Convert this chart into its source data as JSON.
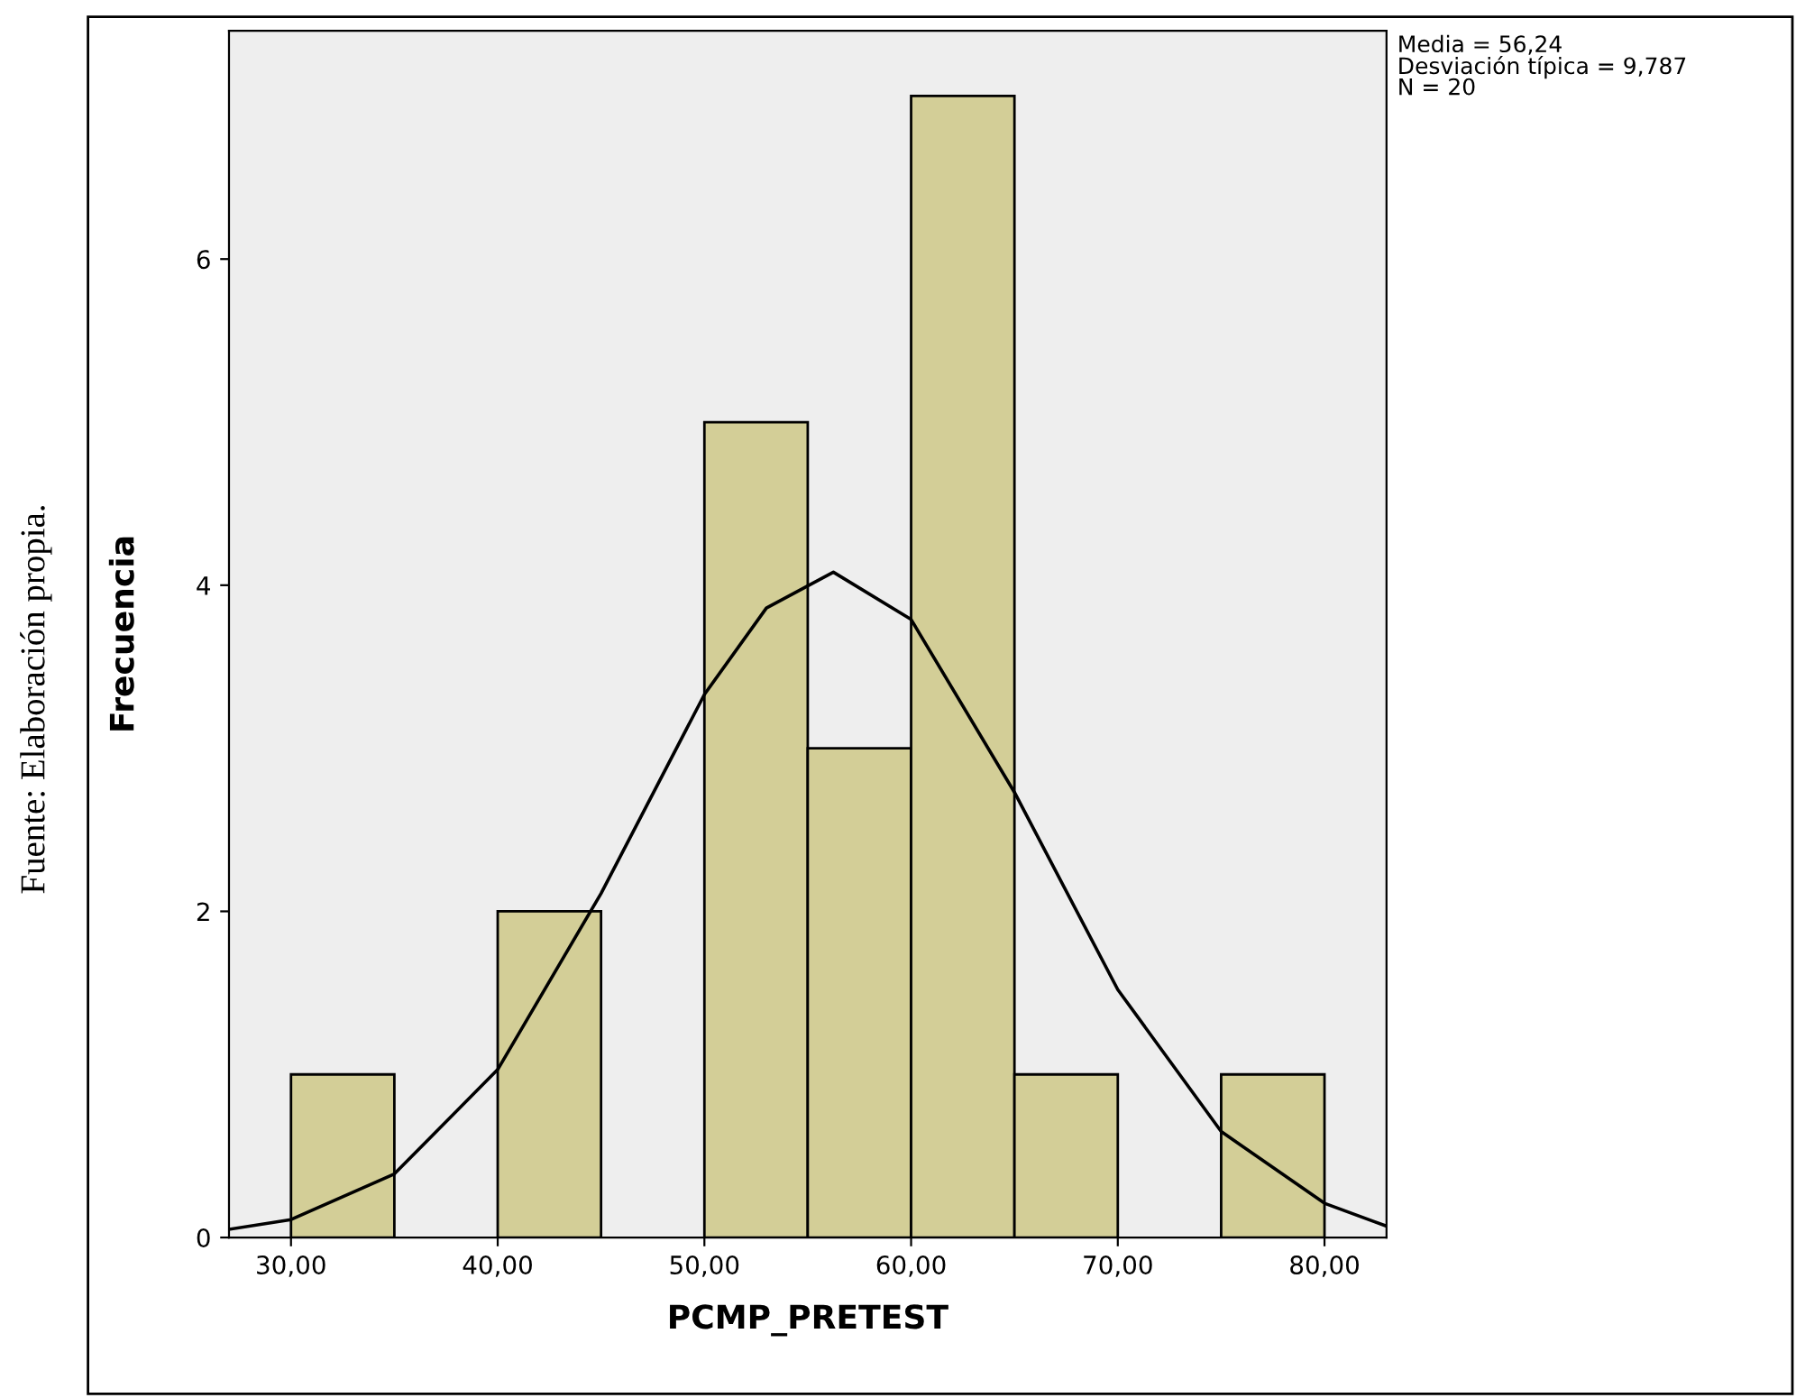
{
  "chart_data": {
    "type": "histogram",
    "xlabel": "PCMP_PRETEST",
    "ylabel": "Frecuencia",
    "bins": [
      30,
      35,
      40,
      45,
      50,
      55,
      60,
      65,
      70,
      75,
      80
    ],
    "values": [
      1,
      0,
      2,
      0,
      5,
      3,
      7,
      1,
      0,
      1
    ],
    "color": "#d3ce97",
    "series": [
      {
        "type": "line",
        "color": "#000000",
        "x": [
          27,
          30,
          35,
          40,
          45,
          50,
          53,
          56.24,
          60,
          65,
          70,
          75,
          80,
          83
        ],
        "values": [
          0.05,
          0.11,
          0.39,
          1.03,
          2.11,
          3.33,
          3.86,
          4.08,
          3.79,
          2.73,
          1.52,
          0.65,
          0.21,
          0.07
        ]
      }
    ],
    "xlim": [
      27,
      83
    ],
    "ylim": [
      0,
      7.4
    ],
    "xticks": [
      {
        "value": 30,
        "label": "30,00"
      },
      {
        "value": 40,
        "label": "40,00"
      },
      {
        "value": 50,
        "label": "50,00"
      },
      {
        "value": 60,
        "label": "60,00"
      },
      {
        "value": 70,
        "label": "70,00"
      },
      {
        "value": 80,
        "label": "80,00"
      }
    ],
    "yticks": [
      0,
      2,
      4,
      6
    ],
    "grid": false,
    "legend": false,
    "annotations": [
      "Media = 56,24\nDesviación típica = 9,787\nN = 20",
      "Fuente: Elaboración propia."
    ]
  }
}
